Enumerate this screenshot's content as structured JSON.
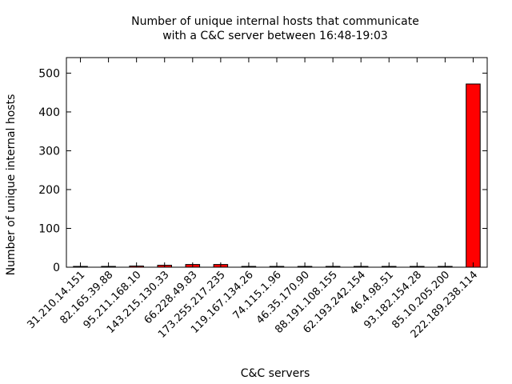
{
  "chart_data": {
    "type": "bar",
    "title_lines": [
      "Number of unique internal hosts that communicate",
      "with a C&C server between 16:48-19:03"
    ],
    "xlabel": "C&C servers",
    "ylabel": "Number of unique internal hosts",
    "ylim": [
      0,
      540
    ],
    "yticks": [
      0,
      100,
      200,
      300,
      400,
      500
    ],
    "bar_color": "#ff0000",
    "grid": false,
    "categories": [
      "31.210.14.151",
      "82.165.39.88",
      "95.211.168.10",
      "143.215.130.33",
      "66.228.49.83",
      "173.255.217.235",
      "119.167.134.26",
      "74.115.1.96",
      "46.35.170.90",
      "88.191.108.155",
      "62.193.242.154",
      "46.4.98.51",
      "93.182.154.28",
      "85.10.205.200",
      "222.189.238.114"
    ],
    "values": [
      0,
      1,
      3,
      5,
      7,
      7,
      0,
      1,
      0,
      0,
      0,
      0,
      0,
      0,
      472
    ]
  }
}
